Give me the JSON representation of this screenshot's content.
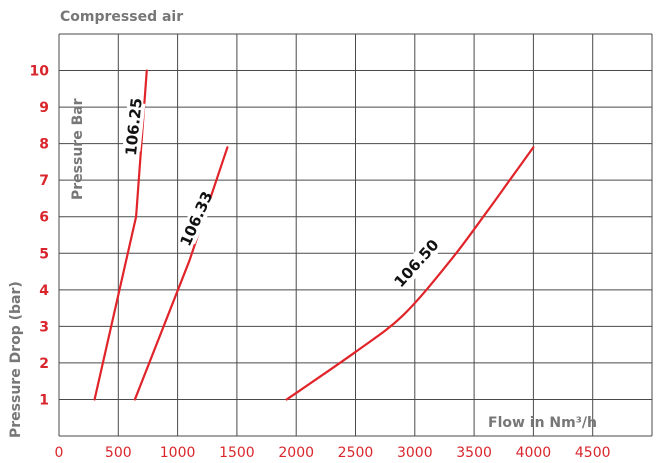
{
  "chart_data": {
    "type": "line",
    "title": "Compressed air",
    "ylabel": "Pressure Drop (bar)",
    "xlabel": "Flow in Nm³/h",
    "inner_label": "Pressure Bar",
    "xlim": [
      0,
      5000
    ],
    "ylim": [
      0,
      11
    ],
    "x_ticks": [
      0,
      500,
      1000,
      1500,
      2000,
      2500,
      3000,
      3500,
      4000,
      4500
    ],
    "y_ticks": [
      1,
      2,
      3,
      4,
      5,
      6,
      7,
      8,
      9,
      10
    ],
    "grid": true,
    "series": [
      {
        "name": "106.25",
        "color": "#e0242a",
        "points": [
          [
            300,
            1
          ],
          [
            650,
            6
          ],
          [
            740,
            10
          ]
        ]
      },
      {
        "name": "106.33",
        "color": "#e0242a",
        "points": [
          [
            640,
            1
          ],
          [
            1100,
            4.8
          ],
          [
            1420,
            7.9
          ]
        ]
      },
      {
        "name": "106.50",
        "color": "#e0242a",
        "points": [
          [
            1920,
            1
          ],
          [
            2500,
            2.3
          ],
          [
            2900,
            3.3
          ],
          [
            3300,
            4.8
          ],
          [
            3600,
            6.1
          ],
          [
            3800,
            7
          ],
          [
            4000,
            7.9
          ]
        ]
      }
    ]
  }
}
